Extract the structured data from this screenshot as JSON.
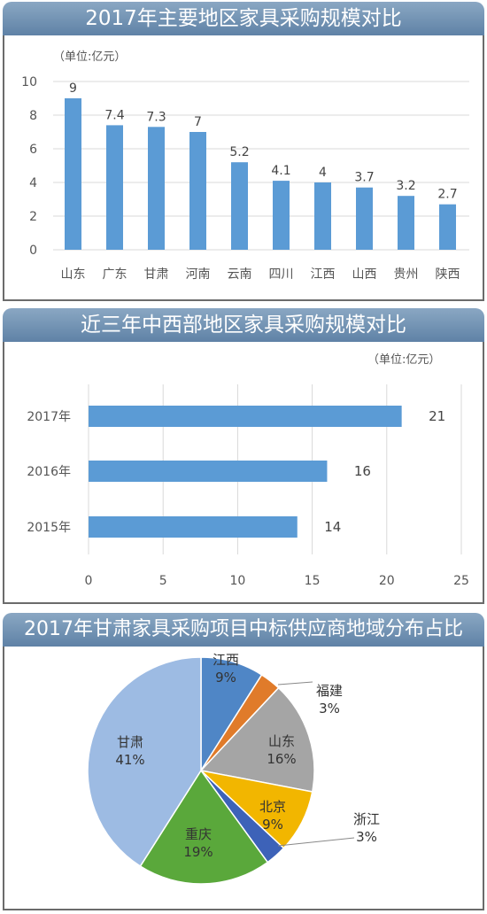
{
  "chart_data": [
    {
      "type": "bar",
      "title": "2017年主要地区家具采购规模对比",
      "unit_label": "（单位:亿元）",
      "categories": [
        "山东",
        "广东",
        "甘肃",
        "河南",
        "云南",
        "四川",
        "江西",
        "山西",
        "贵州",
        "陕西"
      ],
      "values": [
        9,
        7.4,
        7.3,
        7,
        5.2,
        4.1,
        4,
        3.7,
        3.2,
        2.7
      ],
      "data_labels": [
        "9",
        "7.4",
        "7.3",
        "7",
        "5.2",
        "4.1",
        "4",
        "3.7",
        "3.2",
        "2.7"
      ],
      "yticks": [
        "0",
        "2",
        "4",
        "6",
        "8",
        "10"
      ],
      "ylim": [
        0,
        10
      ],
      "grid": true,
      "color": "#5b9bd5"
    },
    {
      "type": "bar",
      "orientation": "horizontal",
      "title": "近三年中西部地区家具采购规模对比",
      "unit_label": "（单位:亿元）",
      "categories": [
        "2017年",
        "2016年",
        "2015年"
      ],
      "values": [
        21,
        16,
        14
      ],
      "data_labels": [
        "21",
        "16",
        "14"
      ],
      "xticks": [
        "0",
        "5",
        "10",
        "15",
        "20",
        "25"
      ],
      "xlim": [
        0,
        25
      ],
      "grid": true,
      "color": "#5b9bd5"
    },
    {
      "type": "pie",
      "title": "2017年甘肃家具采购项目中标供应商地域分布占比",
      "slices": [
        {
          "name": "江西",
          "value": 9,
          "label": "9%",
          "color": "#4f86c6"
        },
        {
          "name": "福建",
          "value": 3,
          "label": "3%",
          "color": "#e07b2a"
        },
        {
          "name": "山东",
          "value": 16,
          "label": "16%",
          "color": "#a5a5a5"
        },
        {
          "name": "北京",
          "value": 9,
          "label": "9%",
          "color": "#f2b600"
        },
        {
          "name": "浙江",
          "value": 3,
          "label": "3%",
          "color": "#3d62b8"
        },
        {
          "name": "重庆",
          "value": 19,
          "label": "19%",
          "color": "#5aa83b"
        },
        {
          "name": "甘肃",
          "value": 41,
          "label": "41%",
          "color": "#9dbbe3"
        }
      ]
    }
  ]
}
